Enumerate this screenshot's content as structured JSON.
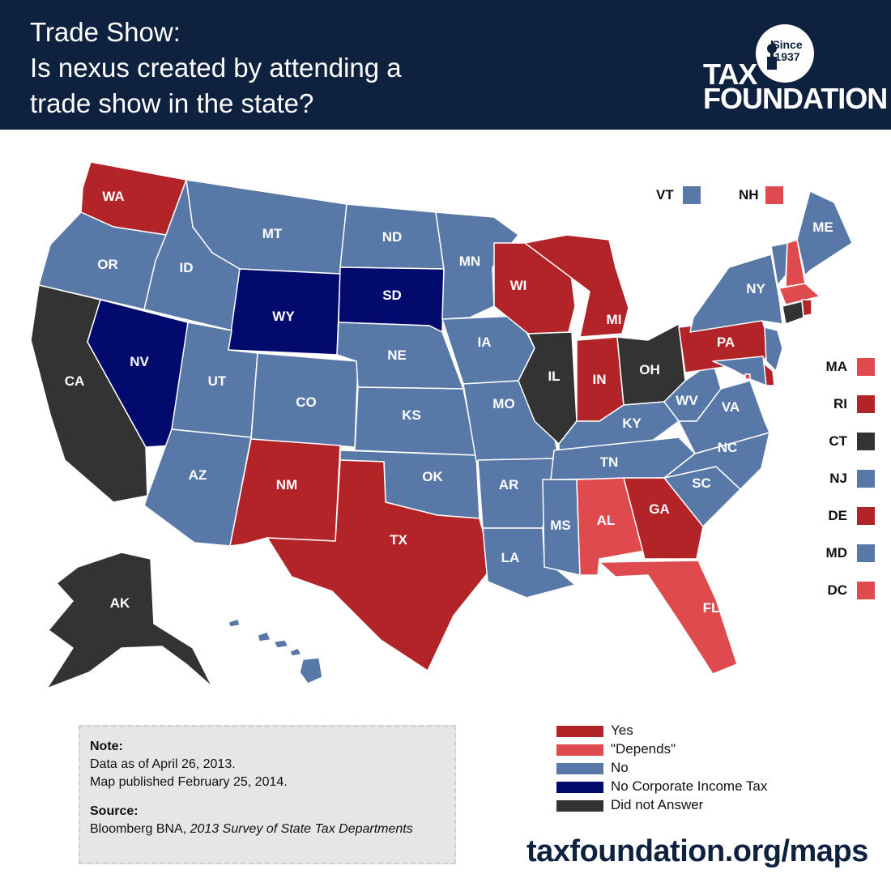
{
  "header": {
    "title_line1": "Trade Show:",
    "title_line2": "Is nexus created by attending a",
    "title_line3": "trade show in the state?"
  },
  "logo": {
    "word1": "TAX",
    "word2": "FOUNDATION",
    "seal_line1": "Since",
    "seal_line2": "1937"
  },
  "colors": {
    "yes": "#b22428",
    "depends": "#de4a4d",
    "no": "#5878a8",
    "none": "#030a6e",
    "no_answer": "#333333",
    "header_bg": "#0e2240"
  },
  "states": {
    "WA": "yes",
    "OR": "no",
    "CA": "no_answer",
    "NV": "none",
    "ID": "no",
    "MT": "no",
    "WY": "none",
    "UT": "no",
    "AZ": "no",
    "CO": "no",
    "NM": "yes",
    "ND": "no",
    "SD": "none",
    "NE": "no",
    "KS": "no",
    "OK": "no",
    "TX": "yes",
    "MN": "no",
    "IA": "no",
    "MO": "no",
    "AR": "no",
    "LA": "no",
    "WI": "yes",
    "IL": "no_answer",
    "MS": "no",
    "MI": "yes",
    "IN": "yes",
    "KY": "no",
    "TN": "no",
    "AL": "depends",
    "OH": "no_answer",
    "WV": "no",
    "VA": "no",
    "NC": "no",
    "SC": "no",
    "GA": "yes",
    "FL": "depends",
    "PA": "yes",
    "NY": "no",
    "ME": "no",
    "AK": "no_answer",
    "HI": "no",
    "VT": "no",
    "NH": "depends",
    "MA": "depends",
    "RI": "yes",
    "CT": "no_answer",
    "NJ": "no",
    "DE": "yes",
    "MD": "no",
    "DC": "depends"
  },
  "small_states": [
    {
      "code": "MA",
      "status": "depends"
    },
    {
      "code": "RI",
      "status": "yes"
    },
    {
      "code": "CT",
      "status": "no_answer"
    },
    {
      "code": "NJ",
      "status": "no"
    },
    {
      "code": "DE",
      "status": "yes"
    },
    {
      "code": "MD",
      "status": "no"
    },
    {
      "code": "DC",
      "status": "depends"
    }
  ],
  "top_small_states": [
    {
      "code": "VT",
      "status": "no"
    },
    {
      "code": "NH",
      "status": "depends"
    }
  ],
  "legend": [
    {
      "label": "Yes",
      "status": "yes"
    },
    {
      "label": "\"Depends\"",
      "status": "depends"
    },
    {
      "label": "No",
      "status": "no"
    },
    {
      "label": "No Corporate Income Tax",
      "status": "none"
    },
    {
      "label": "Did not Answer",
      "status": "no_answer"
    }
  ],
  "note": {
    "heading": "Note:",
    "line1": "Data as of April 26, 2013.",
    "line2": "Map published February 25, 2014.",
    "source_heading": "Source:",
    "source_text": "Bloomberg BNA, ",
    "source_italic": "2013 Survey of State Tax Departments"
  },
  "url": "taxfoundation.org/maps"
}
